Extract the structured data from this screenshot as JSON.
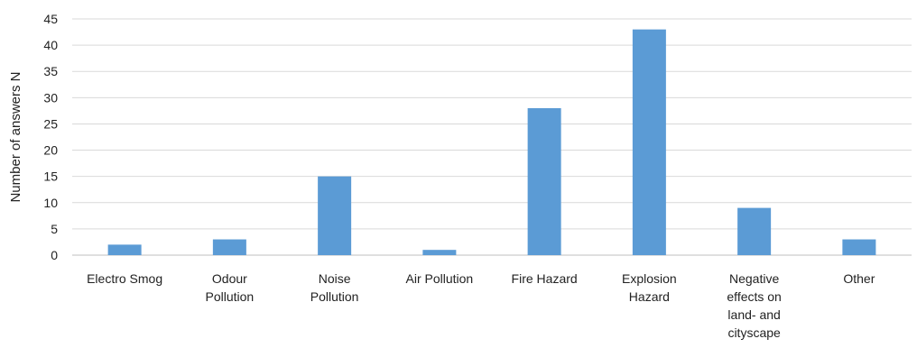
{
  "chart_data": {
    "type": "bar",
    "title": "",
    "xlabel": "",
    "ylabel": "Number of answers N",
    "ylim": [
      0,
      45
    ],
    "yticks": [
      0,
      5,
      10,
      15,
      20,
      25,
      30,
      35,
      40,
      45
    ],
    "grid": true,
    "bar_color": "#5b9bd5",
    "categories": [
      "Electro Smog",
      "Odour Pollution",
      "Noise Pollution",
      "Air Pollution",
      "Fire Hazard",
      "Explosion Hazard",
      "Negative effects on land- and cityscape",
      "Other"
    ],
    "category_lines": [
      [
        "Electro Smog"
      ],
      [
        "Odour",
        "Pollution"
      ],
      [
        "Noise",
        "Pollution"
      ],
      [
        "Air Pollution"
      ],
      [
        "Fire Hazard"
      ],
      [
        "Explosion",
        "Hazard"
      ],
      [
        "Negative",
        "effects on",
        "land- and",
        "cityscape"
      ],
      [
        "Other"
      ]
    ],
    "values": [
      2,
      3,
      15,
      1,
      28,
      43,
      9,
      3
    ]
  }
}
